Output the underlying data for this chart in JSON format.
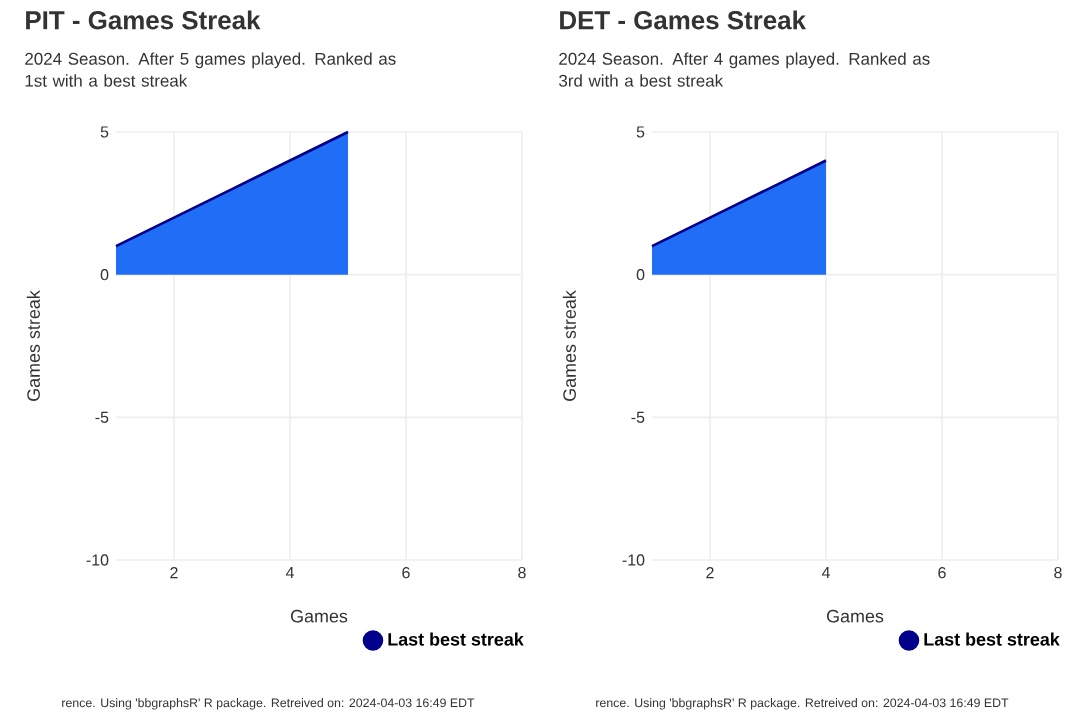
{
  "chart_data": [
    {
      "type": "area",
      "title": "PIT - Games Streak",
      "subtitle": "2024 Season. After 5 games played. Ranked as 1st with a best streak",
      "xlabel": "Games",
      "ylabel": "Games streak",
      "x": [
        1,
        2,
        3,
        4,
        5
      ],
      "series": [
        {
          "name": "Last best streak",
          "color": "#00008b",
          "values": [
            1,
            2,
            3,
            4,
            5
          ]
        }
      ],
      "xlim": [
        1,
        8
      ],
      "ylim": [
        -10,
        5
      ],
      "xticks": [
        2,
        4,
        6,
        8
      ],
      "yticks": [
        -10,
        -5,
        0,
        5
      ],
      "grid": true,
      "legend": "bottom right",
      "annotations": [
        "rence. Using 'bbgraphsR' R package. Retreived on: 2024-04-03 16:49 EDT"
      ]
    },
    {
      "type": "area",
      "title": "DET - Games Streak",
      "subtitle": "2024 Season. After 4 games played. Ranked as 3rd with a best streak",
      "xlabel": "Games",
      "ylabel": "Games streak",
      "x": [
        1,
        2,
        3,
        4
      ],
      "series": [
        {
          "name": "Last best streak",
          "color": "#00008b",
          "values": [
            1,
            2,
            3,
            4
          ]
        }
      ],
      "xlim": [
        1,
        8
      ],
      "ylim": [
        -10,
        5
      ],
      "xticks": [
        2,
        4,
        6,
        8
      ],
      "yticks": [
        -10,
        -5,
        0,
        5
      ],
      "grid": true,
      "legend": "bottom right",
      "annotations": [
        "rence. Using 'bbgraphsR' R package. Retreived on: 2024-04-03 16:49 EDT"
      ]
    }
  ]
}
